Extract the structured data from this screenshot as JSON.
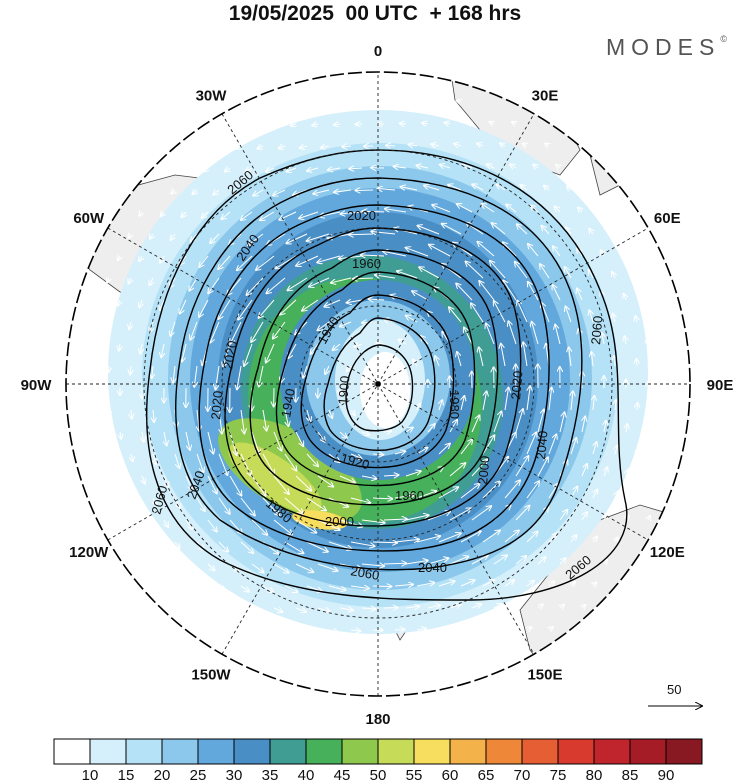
{
  "title": "19/05/2025  00 UTC  + 168 hrs",
  "brand": "MODES",
  "brand_mark": "©",
  "longitude_labels": [
    {
      "text": "0",
      "lon": 0
    },
    {
      "text": "30E",
      "lon": 30
    },
    {
      "text": "60E",
      "lon": 60
    },
    {
      "text": "90E",
      "lon": 90
    },
    {
      "text": "120E",
      "lon": 120
    },
    {
      "text": "150E",
      "lon": 150
    },
    {
      "text": "180",
      "lon": 180
    },
    {
      "text": "150W",
      "lon": -150
    },
    {
      "text": "120W",
      "lon": -120
    },
    {
      "text": "90W",
      "lon": -90
    },
    {
      "text": "60W",
      "lon": -60
    },
    {
      "text": "30W",
      "lon": -30
    }
  ],
  "contour_labels": [
    "2060",
    "2020",
    "1960",
    "2040",
    "1900",
    "1920",
    "1940",
    "1980",
    "2000"
  ],
  "reference_vector": {
    "label": "50"
  },
  "colorbar": {
    "ticks": [
      "10",
      "15",
      "20",
      "25",
      "30",
      "35",
      "40",
      "45",
      "50",
      "55",
      "60",
      "65",
      "70",
      "75",
      "80",
      "85",
      "90"
    ],
    "colors": [
      "#ffffff",
      "#d5f0fb",
      "#b5e2f6",
      "#8cc8ec",
      "#62a8dc",
      "#4a8ec6",
      "#3f9d94",
      "#46b05a",
      "#8ec84d",
      "#c6dc58",
      "#f8de5e",
      "#f4b24a",
      "#ef8739",
      "#e65e33",
      "#d93a2e",
      "#c0242c",
      "#a51c26",
      "#881821"
    ]
  },
  "colors": {
    "land": "#eeeeee",
    "contour": "#000000",
    "vector": "#ffffff",
    "grid": "#222222"
  }
}
